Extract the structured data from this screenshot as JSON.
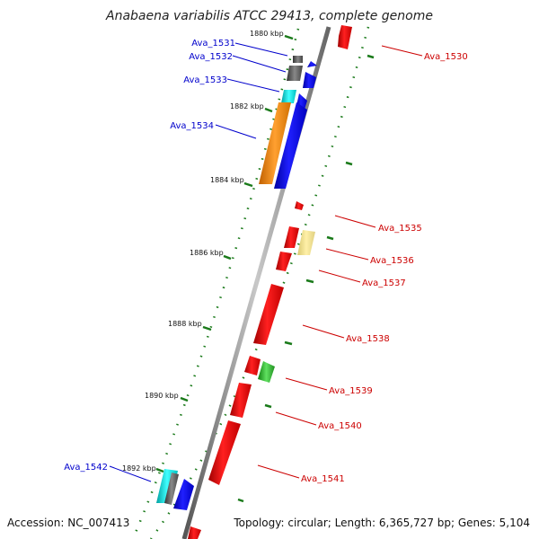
{
  "title": "Anabaena variabilis ATCC 29413, complete genome",
  "footer": {
    "accession": "Accession: NC_007413",
    "topology": "Topology: circular; Length: 6,365,727 bp; Genes: 5,104"
  },
  "colors": {
    "forward_label": "#0000cc",
    "reverse_label": "#cc0000",
    "backbone": "#8a8a8a",
    "tick": "#1a7a1a"
  },
  "tick_labels": [
    "1880 kbp",
    "1882 kbp",
    "1884 kbp",
    "1886 kbp",
    "1888 kbp",
    "1890 kbp",
    "1892 kbp"
  ],
  "genes": [
    {
      "id": "Ava_1530",
      "strand": "reverse"
    },
    {
      "id": "Ava_1531",
      "strand": "forward"
    },
    {
      "id": "Ava_1532",
      "strand": "forward"
    },
    {
      "id": "Ava_1533",
      "strand": "forward"
    },
    {
      "id": "Ava_1534",
      "strand": "forward"
    },
    {
      "id": "Ava_1535",
      "strand": "reverse"
    },
    {
      "id": "Ava_1536",
      "strand": "reverse"
    },
    {
      "id": "Ava_1537",
      "strand": "reverse"
    },
    {
      "id": "Ava_1538",
      "strand": "reverse"
    },
    {
      "id": "Ava_1539",
      "strand": "reverse"
    },
    {
      "id": "Ava_1540",
      "strand": "reverse"
    },
    {
      "id": "Ava_1541",
      "strand": "reverse"
    },
    {
      "id": "Ava_1542",
      "strand": "forward"
    }
  ]
}
